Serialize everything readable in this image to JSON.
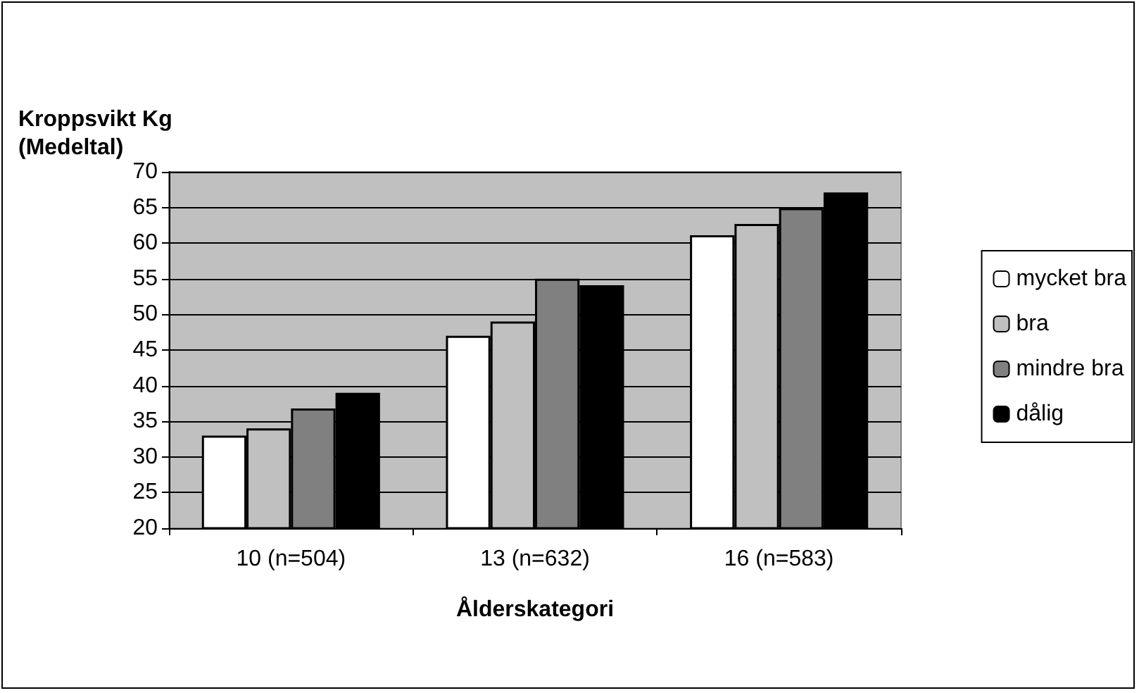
{
  "chart_data": {
    "type": "bar",
    "ylabel": "Kroppsvikt Kg\n(Medeltal)",
    "xlabel": "Ålderskategori",
    "categories": [
      "10 (n=504)",
      "13 (n=632)",
      "16 (n=583)"
    ],
    "series": [
      {
        "name": "mycket bra",
        "color": "#ffffff",
        "values": [
          33,
          47,
          61.1
        ]
      },
      {
        "name": "bra",
        "color": "#c0c0c0",
        "values": [
          34,
          49,
          62.7
        ]
      },
      {
        "name": "mindre bra",
        "color": "#808080",
        "values": [
          36.8,
          55,
          64.9
        ]
      },
      {
        "name": "dålig",
        "color": "#000000",
        "values": [
          39,
          54.1,
          67.1
        ]
      }
    ],
    "ylim": [
      20,
      70
    ],
    "yticks": [
      20,
      25,
      30,
      35,
      40,
      45,
      50,
      55,
      60,
      65,
      70
    ],
    "grid": "y",
    "legend": "right"
  }
}
